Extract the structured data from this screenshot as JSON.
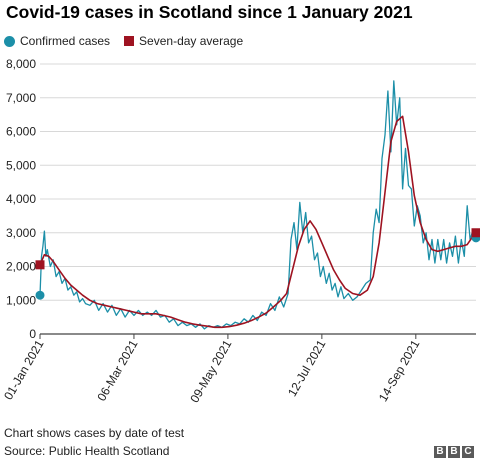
{
  "title": "Covid-19 cases in Scotland since 1 January 2021",
  "footer": {
    "note": "Chart shows cases by date of test",
    "source": "Source: Public Health Scotland",
    "logo_letters": [
      "B",
      "B",
      "C"
    ]
  },
  "colors": {
    "confirmed": "#1c8fa8",
    "average": "#9e1321",
    "grid": "#d8d8d8",
    "axis": "#444444"
  },
  "chart_data": {
    "type": "line",
    "title": "Covid-19 cases in Scotland since 1 January 2021",
    "xlabel": "",
    "ylabel": "",
    "x_range": [
      "2021-01-01",
      "2021-10-25"
    ],
    "ylim": [
      0,
      8000
    ],
    "y_ticks": [
      0,
      1000,
      2000,
      3000,
      4000,
      5000,
      6000,
      7000,
      8000
    ],
    "y_tick_labels": [
      "0",
      "1,000",
      "2,000",
      "3,000",
      "4,000",
      "5,000",
      "6,000",
      "7,000",
      "8,000"
    ],
    "x_ticks": [
      "2021-01-01",
      "2021-03-06",
      "2021-05-09",
      "2021-07-12",
      "2021-09-14"
    ],
    "x_tick_labels": [
      "01-Jan 2021",
      "06-Mar 2021",
      "09-May 2021",
      "12-Jul 2021",
      "14-Sep 2021"
    ],
    "grid": true,
    "legend": "top-left",
    "series": [
      {
        "name": "Confirmed cases",
        "style": "line-with-endpoint-markers",
        "x": [
          "2021-01-01",
          "2021-01-02",
          "2021-01-03",
          "2021-01-04",
          "2021-01-05",
          "2021-01-06",
          "2021-01-08",
          "2021-01-10",
          "2021-01-12",
          "2021-01-14",
          "2021-01-16",
          "2021-01-18",
          "2021-01-20",
          "2021-01-22",
          "2021-01-24",
          "2021-01-26",
          "2021-01-28",
          "2021-01-30",
          "2021-02-01",
          "2021-02-04",
          "2021-02-07",
          "2021-02-10",
          "2021-02-13",
          "2021-02-16",
          "2021-02-19",
          "2021-02-22",
          "2021-02-25",
          "2021-02-28",
          "2021-03-03",
          "2021-03-06",
          "2021-03-09",
          "2021-03-12",
          "2021-03-15",
          "2021-03-18",
          "2021-03-21",
          "2021-03-24",
          "2021-03-27",
          "2021-03-30",
          "2021-04-02",
          "2021-04-05",
          "2021-04-08",
          "2021-04-11",
          "2021-04-14",
          "2021-04-17",
          "2021-04-20",
          "2021-04-23",
          "2021-04-26",
          "2021-04-29",
          "2021-05-02",
          "2021-05-05",
          "2021-05-08",
          "2021-05-11",
          "2021-05-14",
          "2021-05-17",
          "2021-05-20",
          "2021-05-23",
          "2021-05-26",
          "2021-05-29",
          "2021-06-01",
          "2021-06-04",
          "2021-06-07",
          "2021-06-10",
          "2021-06-13",
          "2021-06-16",
          "2021-06-19",
          "2021-06-21",
          "2021-06-23",
          "2021-06-25",
          "2021-06-27",
          "2021-06-29",
          "2021-07-01",
          "2021-07-03",
          "2021-07-05",
          "2021-07-07",
          "2021-07-09",
          "2021-07-11",
          "2021-07-13",
          "2021-07-15",
          "2021-07-17",
          "2021-07-19",
          "2021-07-21",
          "2021-07-23",
          "2021-07-25",
          "2021-07-27",
          "2021-07-30",
          "2021-08-02",
          "2021-08-05",
          "2021-08-08",
          "2021-08-11",
          "2021-08-14",
          "2021-08-16",
          "2021-08-18",
          "2021-08-20",
          "2021-08-22",
          "2021-08-24",
          "2021-08-26",
          "2021-08-28",
          "2021-08-30",
          "2021-09-01",
          "2021-09-03",
          "2021-09-05",
          "2021-09-07",
          "2021-09-09",
          "2021-09-11",
          "2021-09-13",
          "2021-09-15",
          "2021-09-17",
          "2021-09-19",
          "2021-09-21",
          "2021-09-23",
          "2021-09-25",
          "2021-09-27",
          "2021-09-29",
          "2021-10-01",
          "2021-10-03",
          "2021-10-05",
          "2021-10-07",
          "2021-10-09",
          "2021-10-11",
          "2021-10-13",
          "2021-10-15",
          "2021-10-17",
          "2021-10-19",
          "2021-10-21",
          "2021-10-23",
          "2021-10-25"
        ],
        "values": [
          1150,
          2300,
          2600,
          3050,
          2300,
          2500,
          2000,
          2200,
          1700,
          1850,
          1500,
          1650,
          1300,
          1400,
          1150,
          1250,
          950,
          1050,
          900,
          850,
          1000,
          700,
          900,
          650,
          850,
          550,
          750,
          500,
          700,
          550,
          700,
          550,
          650,
          550,
          700,
          500,
          550,
          350,
          450,
          250,
          350,
          250,
          300,
          200,
          300,
          150,
          250,
          200,
          250,
          200,
          300,
          250,
          350,
          300,
          450,
          350,
          550,
          400,
          650,
          550,
          900,
          700,
          1100,
          800,
          1200,
          2800,
          3300,
          2500,
          3900,
          3000,
          3600,
          2700,
          2900,
          2200,
          2400,
          1700,
          2000,
          1500,
          1800,
          1300,
          1500,
          1100,
          1400,
          1050,
          1200,
          1000,
          1100,
          1300,
          1500,
          1600,
          3000,
          3700,
          3300,
          5200,
          5900,
          7200,
          5400,
          7500,
          6200,
          7000,
          4300,
          5500,
          4400,
          4300,
          3200,
          3800,
          3500,
          2700,
          3000,
          2200,
          2800,
          2100,
          2800,
          2200,
          2800,
          2100,
          2700,
          2300,
          2900,
          2100,
          2800,
          2300,
          3800,
          2800,
          3100,
          2850
        ]
      },
      {
        "name": "Seven-day average",
        "style": "line-with-endpoint-markers",
        "x": [
          "2021-01-01",
          "2021-01-04",
          "2021-01-07",
          "2021-01-10",
          "2021-01-14",
          "2021-01-18",
          "2021-01-22",
          "2021-01-26",
          "2021-01-30",
          "2021-02-04",
          "2021-02-09",
          "2021-02-14",
          "2021-02-19",
          "2021-02-24",
          "2021-03-01",
          "2021-03-06",
          "2021-03-11",
          "2021-03-16",
          "2021-03-21",
          "2021-03-26",
          "2021-03-31",
          "2021-04-05",
          "2021-04-10",
          "2021-04-15",
          "2021-04-20",
          "2021-04-25",
          "2021-04-30",
          "2021-05-05",
          "2021-05-10",
          "2021-05-15",
          "2021-05-20",
          "2021-05-25",
          "2021-05-30",
          "2021-06-04",
          "2021-06-09",
          "2021-06-14",
          "2021-06-18",
          "2021-06-22",
          "2021-06-26",
          "2021-06-30",
          "2021-07-04",
          "2021-07-08",
          "2021-07-12",
          "2021-07-16",
          "2021-07-20",
          "2021-07-24",
          "2021-07-28",
          "2021-08-02",
          "2021-08-07",
          "2021-08-12",
          "2021-08-16",
          "2021-08-20",
          "2021-08-24",
          "2021-08-28",
          "2021-09-01",
          "2021-09-05",
          "2021-09-09",
          "2021-09-13",
          "2021-09-17",
          "2021-09-21",
          "2021-09-25",
          "2021-09-29",
          "2021-10-03",
          "2021-10-07",
          "2021-10-11",
          "2021-10-15",
          "2021-10-19",
          "2021-10-23",
          "2021-10-25"
        ],
        "values": [
          2050,
          2350,
          2300,
          2150,
          1900,
          1650,
          1450,
          1300,
          1150,
          1000,
          900,
          850,
          800,
          750,
          700,
          650,
          600,
          600,
          600,
          550,
          500,
          420,
          350,
          300,
          260,
          230,
          200,
          200,
          220,
          260,
          320,
          400,
          500,
          620,
          800,
          1000,
          1200,
          1900,
          2600,
          3100,
          3350,
          3100,
          2700,
          2300,
          1900,
          1600,
          1350,
          1200,
          1150,
          1300,
          1700,
          2700,
          4200,
          5700,
          6300,
          6450,
          5400,
          4100,
          3300,
          2800,
          2500,
          2450,
          2500,
          2550,
          2600,
          2600,
          2650,
          2900,
          3000
        ]
      }
    ]
  }
}
